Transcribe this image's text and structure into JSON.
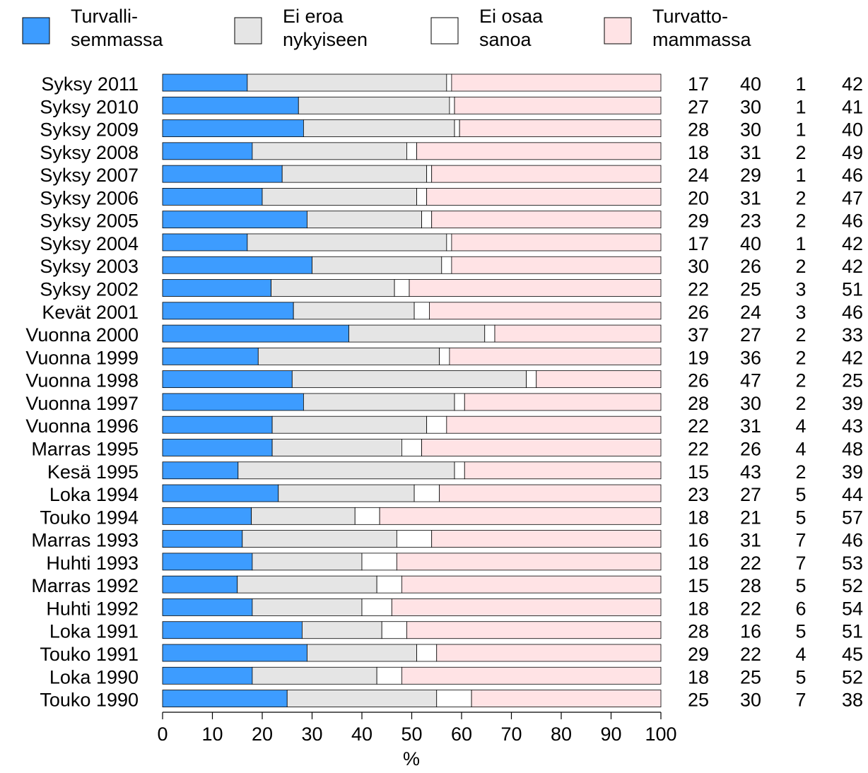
{
  "chart_data": {
    "type": "bar",
    "orientation": "horizontal",
    "stacked": true,
    "xlabel": "%",
    "xlim": [
      0,
      100
    ],
    "x_ticks": [
      "0",
      "10",
      "20",
      "30",
      "40",
      "50",
      "60",
      "70",
      "80",
      "90",
      "100"
    ],
    "grid": false,
    "legend_position": "top",
    "categories": [
      "Syksy 2011",
      "Syksy 2010",
      "Syksy 2009",
      "Syksy 2008",
      "Syksy 2007",
      "Syksy 2006",
      "Syksy 2005",
      "Syksy 2004",
      "Syksy 2003",
      "Syksy 2002",
      "Kevät 2001",
      "Vuonna 2000",
      "Vuonna 1999",
      "Vuonna 1998",
      "Vuonna 1997",
      "Vuonna 1996",
      "Marras 1995",
      "Kesä 1995",
      "Loka 1994",
      "Touko 1994",
      "Marras 1993",
      "Huhti 1993",
      "Marras 1992",
      "Huhti 1992",
      "Loka 1991",
      "Touko 1991",
      "Loka 1990",
      "Touko 1990"
    ],
    "series": [
      {
        "name_lines": [
          "Turvalli-",
          "semmassa"
        ],
        "color": "#3d9cff",
        "values": [
          17,
          27,
          28,
          18,
          24,
          20,
          29,
          17,
          30,
          22,
          26,
          37,
          19,
          26,
          28,
          22,
          22,
          15,
          23,
          18,
          16,
          18,
          15,
          18,
          28,
          29,
          18,
          25
        ]
      },
      {
        "name_lines": [
          "Ei eroa",
          "nykyiseen"
        ],
        "color": "#e5e5e5",
        "values": [
          40,
          30,
          30,
          31,
          29,
          31,
          23,
          40,
          26,
          25,
          24,
          27,
          36,
          47,
          30,
          31,
          26,
          43,
          27,
          21,
          31,
          22,
          28,
          22,
          16,
          22,
          25,
          30
        ]
      },
      {
        "name_lines": [
          "Ei osaa",
          "sanoa"
        ],
        "color": "#ffffff",
        "values": [
          1,
          1,
          1,
          2,
          1,
          2,
          2,
          1,
          2,
          3,
          3,
          2,
          2,
          2,
          2,
          4,
          4,
          2,
          5,
          5,
          7,
          7,
          5,
          6,
          5,
          4,
          5,
          7
        ]
      },
      {
        "name_lines": [
          "Turvatto-",
          "mammassa"
        ],
        "color": "#ffe3e5",
        "values": [
          42,
          41,
          40,
          49,
          46,
          47,
          46,
          42,
          42,
          51,
          46,
          33,
          42,
          25,
          39,
          43,
          48,
          39,
          44,
          57,
          46,
          53,
          52,
          54,
          51,
          45,
          52,
          38
        ]
      }
    ]
  }
}
